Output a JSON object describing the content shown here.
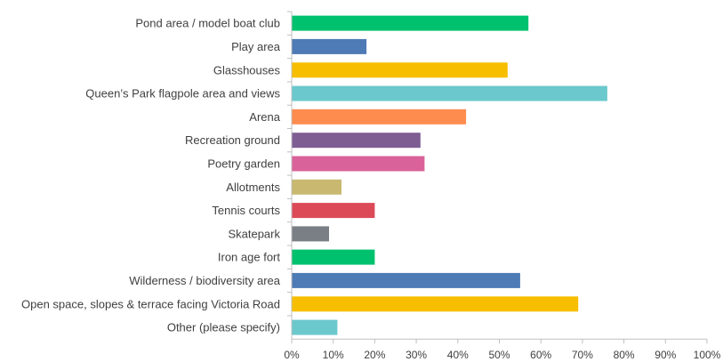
{
  "chart_data": {
    "type": "bar",
    "orientation": "horizontal",
    "categories": [
      "Pond area / model boat club",
      "Play area",
      "Glasshouses",
      "Queen’s Park flagpole area and views",
      "Arena",
      "Recreation ground",
      "Poetry garden",
      "Allotments",
      "Tennis courts",
      "Skatepark",
      "Iron age fort",
      "Wilderness / biodiversity area",
      "Open space, slopes & terrace facing Victoria Road",
      "Other (please specify)"
    ],
    "values": [
      57,
      18,
      52,
      76,
      42,
      31,
      32,
      12,
      20,
      9,
      20,
      55,
      69,
      11
    ],
    "colors": [
      "#00c16e",
      "#4e7ab5",
      "#f7be00",
      "#6bc8cc",
      "#ff8c4f",
      "#7e5d93",
      "#d9629a",
      "#c9b86f",
      "#dc4a58",
      "#7a7f86",
      "#00c16e",
      "#4e7ab5",
      "#f7be00",
      "#6bc8cc"
    ],
    "x_ticks": [
      "0%",
      "10%",
      "20%",
      "30%",
      "40%",
      "50%",
      "60%",
      "70%",
      "80%",
      "90%",
      "100%"
    ],
    "xlim": [
      0,
      100
    ],
    "axis_color": "#bfbfbf",
    "grid": false,
    "title": "",
    "xlabel": "",
    "ylabel": ""
  }
}
